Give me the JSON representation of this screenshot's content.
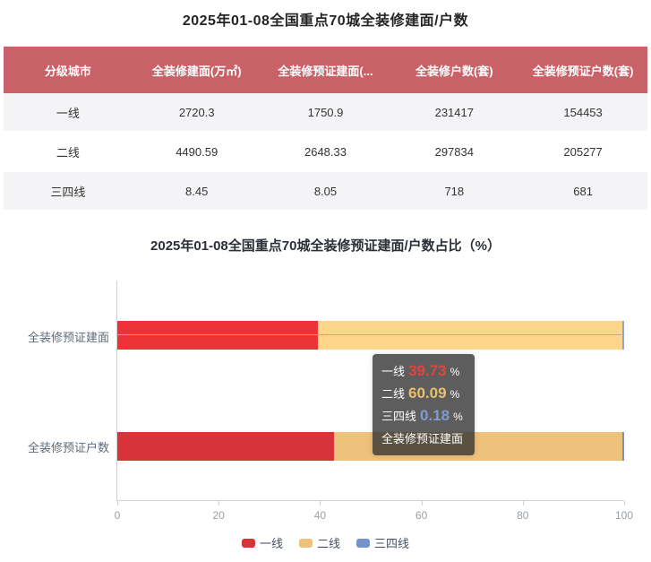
{
  "table": {
    "title": "2025年01-08全国重点70城全装修建面/户数",
    "columns": [
      "分级城市",
      "全装修建面(万㎡)",
      "全装修预证建面(...",
      "全装修户数(套)",
      "全装修预证户数(套)"
    ],
    "rows": [
      [
        "一线",
        "2720.3",
        "1750.9",
        "231417",
        "154453"
      ],
      [
        "二线",
        "4490.59",
        "2648.33",
        "297834",
        "205277"
      ],
      [
        "三四线",
        "8.45",
        "8.05",
        "718",
        "681"
      ]
    ],
    "header_bg": "#c96168",
    "stripe_bg": "#f4f4f6"
  },
  "chart_data": {
    "type": "bar",
    "orientation": "horizontal-stacked",
    "title": "2025年01-08全国重点70城全装修预证建面/户数占比（%）",
    "categories": [
      "全装修预证建面",
      "全装修预证户数"
    ],
    "series": [
      {
        "name": "一线",
        "color": "#d9333a",
        "hover_color": "#ee3338",
        "values": [
          39.73,
          42.85
        ]
      },
      {
        "name": "二线",
        "color": "#edc27b",
        "hover_color": "#fdd68c",
        "values": [
          60.09,
          56.96
        ]
      },
      {
        "name": "三四线",
        "color": "#7492cc",
        "hover_color": "#8ba6d8",
        "values": [
          0.18,
          0.19
        ]
      }
    ],
    "xlim": [
      0,
      100
    ],
    "x_ticks": [
      "0",
      "20",
      "40",
      "60",
      "80",
      "100"
    ],
    "grid": false,
    "legend_position": "bottom",
    "hovered_category_index": 0
  },
  "tooltip": {
    "rows": [
      {
        "label": "一线",
        "value": "39.73",
        "unit": "%",
        "color": "#e04540"
      },
      {
        "label": "二线",
        "value": "60.09",
        "unit": "%",
        "color": "#e9be6f"
      },
      {
        "label": "三四线",
        "value": "0.18",
        "unit": "%",
        "color": "#7e9bd4"
      }
    ],
    "series_name": "全装修预证建面"
  }
}
